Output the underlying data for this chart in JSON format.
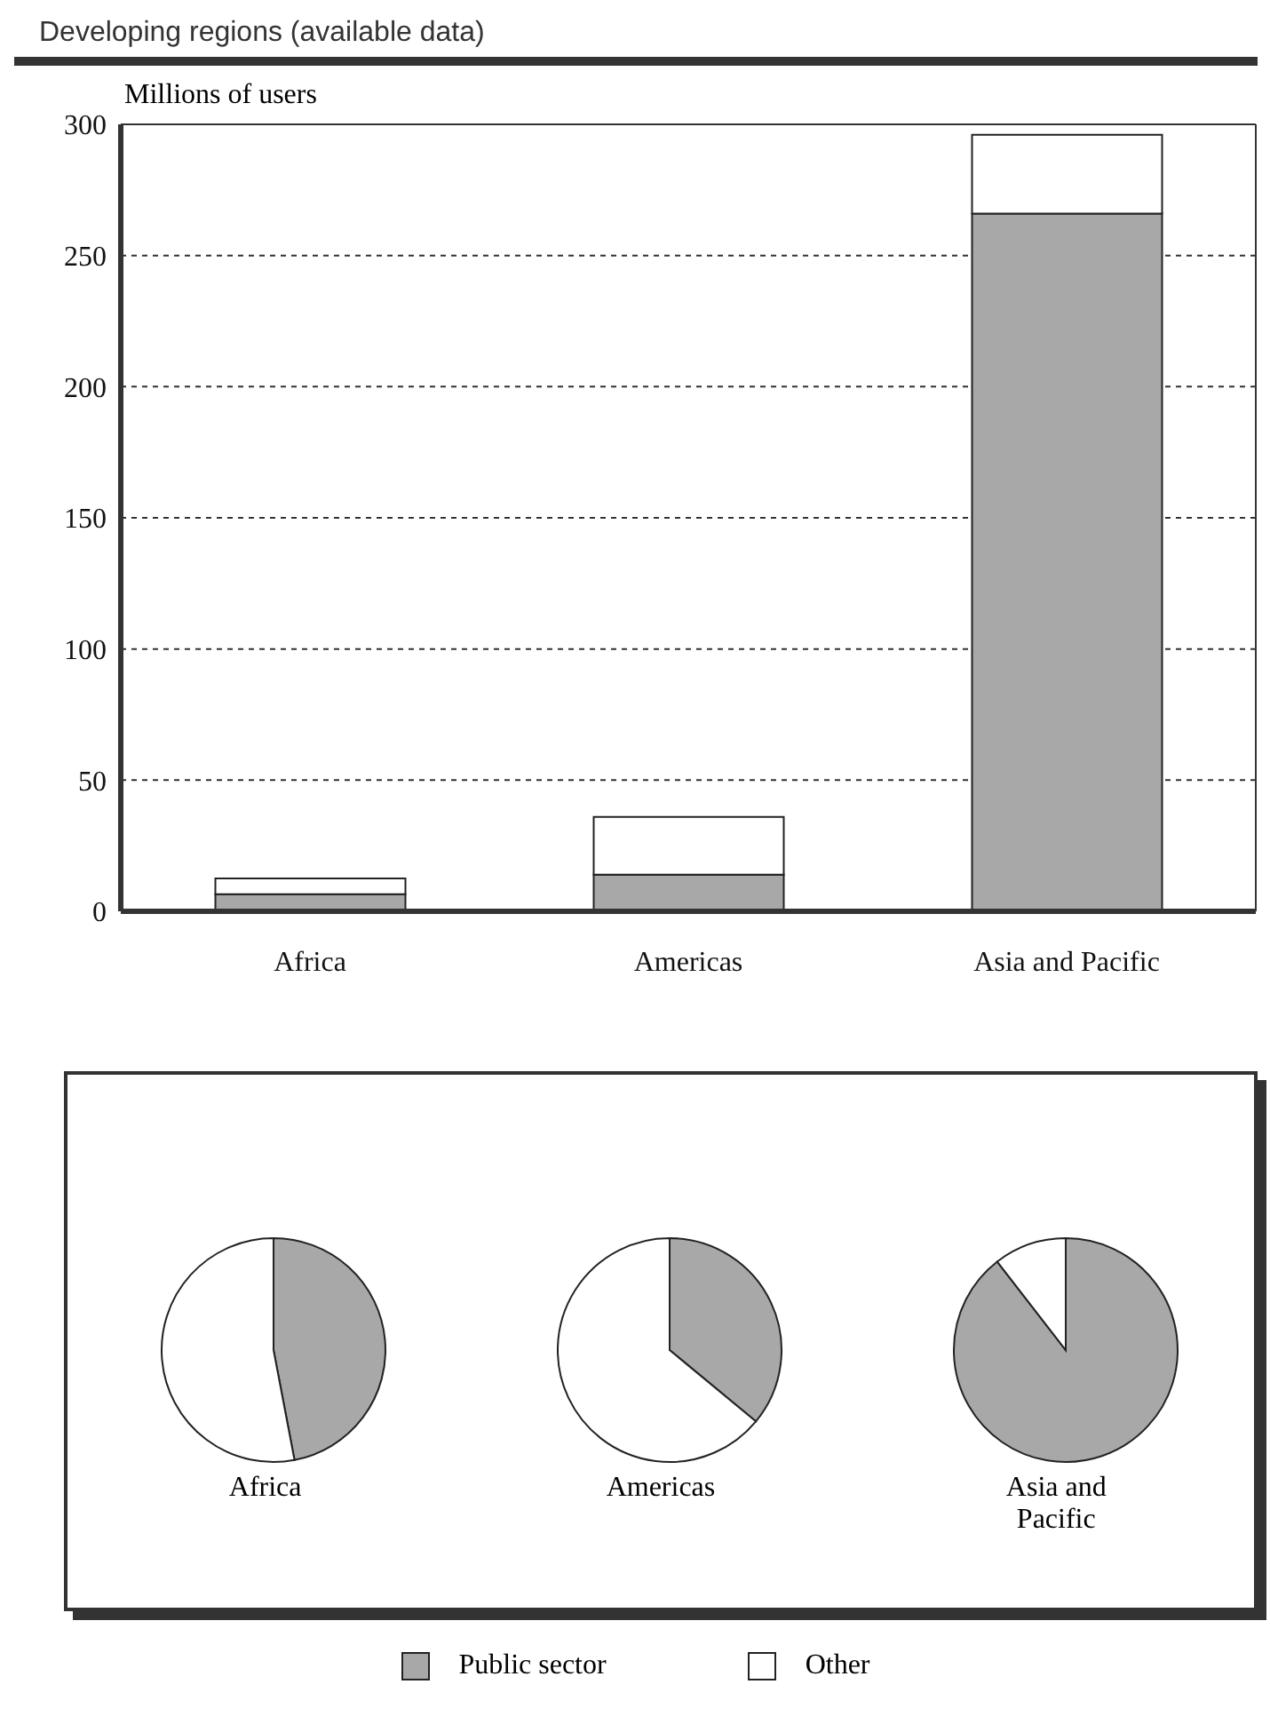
{
  "chart_data": [
    {
      "type": "bar",
      "title": "Developing regions (available data)",
      "ylabel": "Millions of users",
      "categories": [
        "Africa",
        "Americas",
        "Asia and Pacific"
      ],
      "stacked": true,
      "legend": "bottom",
      "series": [
        {
          "name": "Public sector",
          "color": "#a8a8a8",
          "values": [
            6.5,
            14,
            266
          ]
        },
        {
          "name": "Other",
          "color": "#ffffff",
          "values": [
            6,
            22,
            30
          ]
        }
      ],
      "ylim": [
        0,
        300
      ],
      "yticks": [
        0,
        50,
        100,
        150,
        200,
        250,
        300
      ],
      "grid": "y",
      "line_style": "dotted"
    },
    {
      "type": "pie",
      "title": "Africa",
      "categories": [
        null,
        null
      ],
      "values": [
        47,
        53
      ],
      "colors": [
        "#a8a8a8",
        "#ffffff"
      ]
    },
    {
      "type": "pie",
      "title": "Americas",
      "categories": [
        null,
        null
      ],
      "values": [
        36,
        64
      ],
      "colors": [
        "#a8a8a8",
        "#ffffff"
      ]
    },
    {
      "type": "pie",
      "title": "Asia and Pacific",
      "categories": [
        null,
        null
      ],
      "values": [
        89.5,
        10.5
      ],
      "colors": [
        "#a8a8a8",
        "#ffffff"
      ]
    }
  ]
}
